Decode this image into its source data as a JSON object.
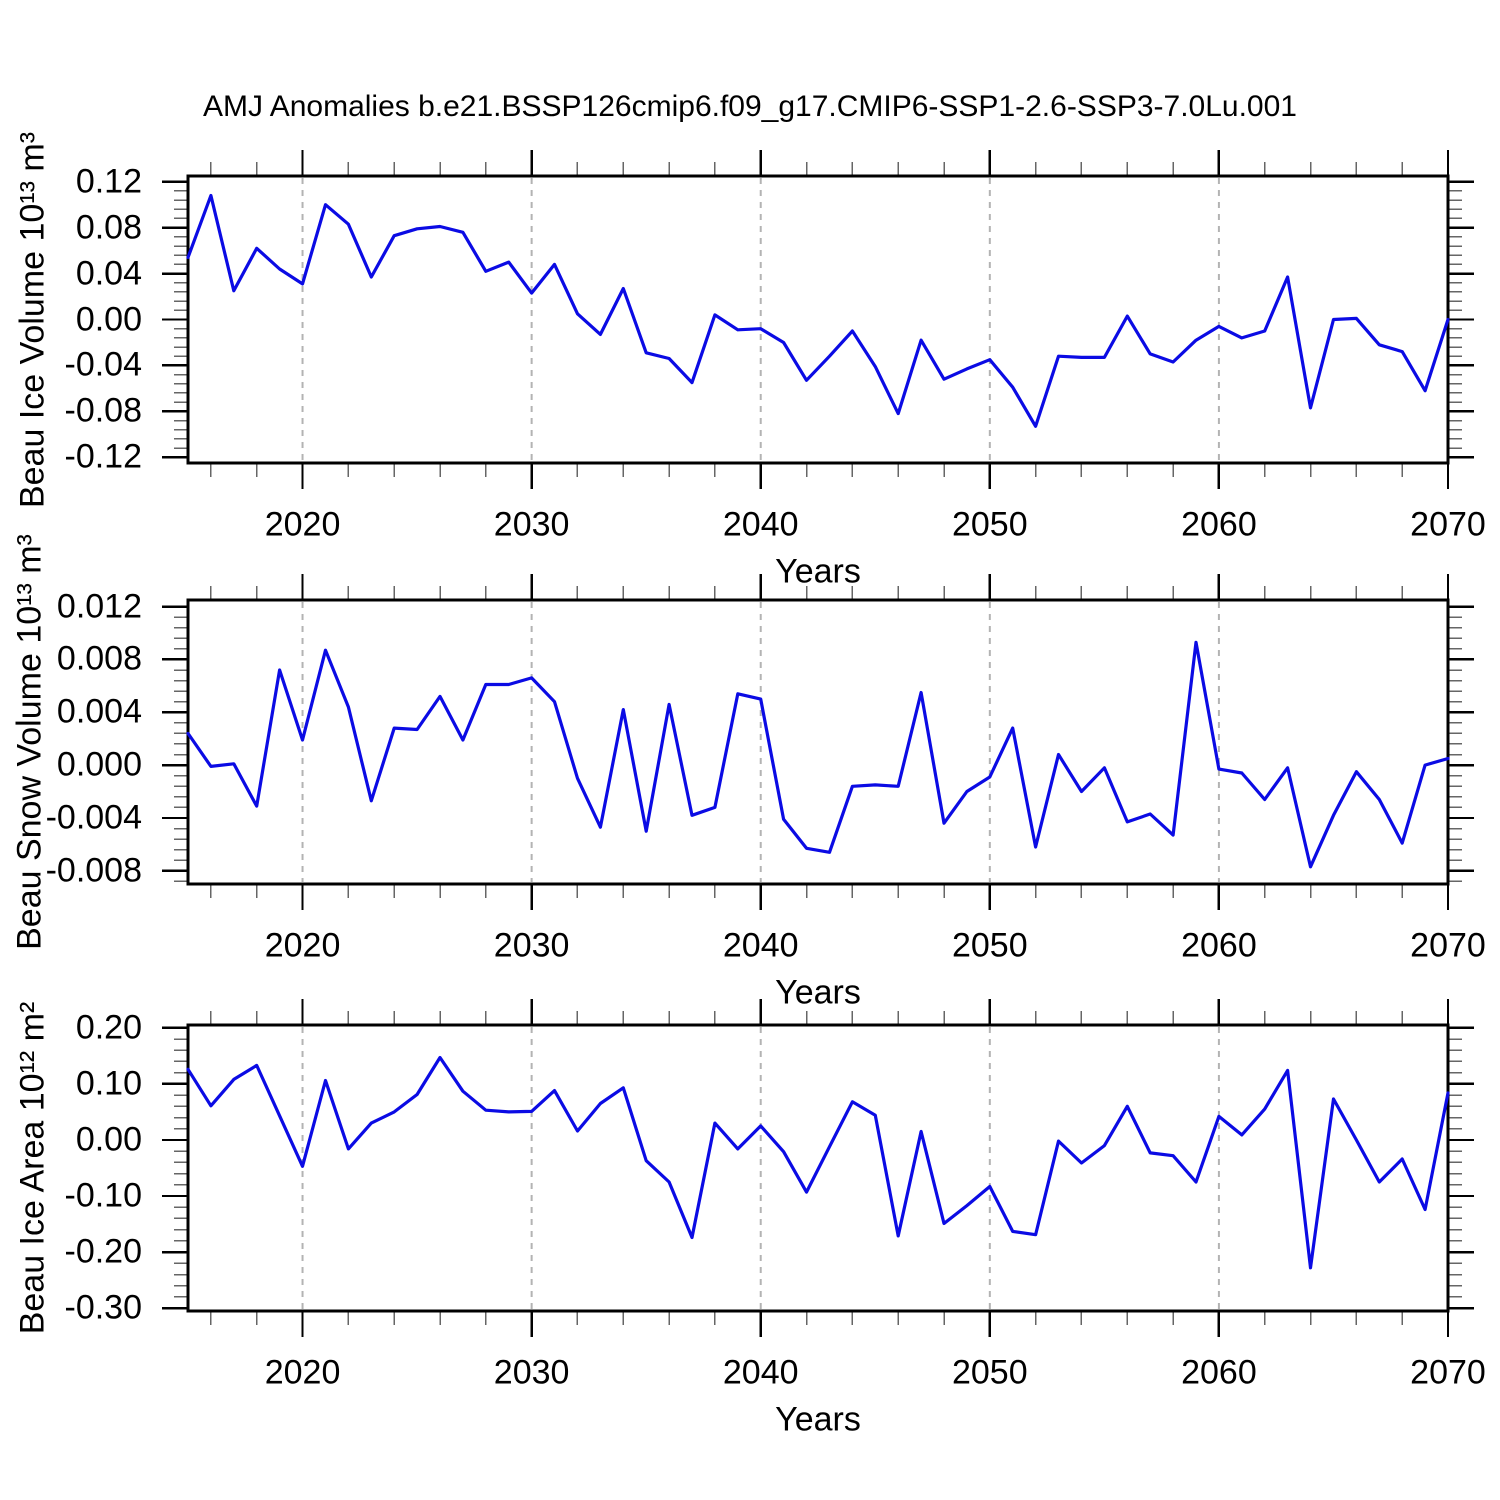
{
  "title": "AMJ Anomalies b.e21.BSSP126cmip6.f09_g17.CMIP6-SSP1-2.6-SSP3-7.0Lu.001",
  "xlabel": "Years",
  "colors": {
    "series": "#0b0be4",
    "grid": "#b3b3b3",
    "axis": "#000000",
    "minor_tick": "#666666",
    "text": "#000000"
  },
  "x_axis": {
    "years": [
      2015,
      2016,
      2017,
      2018,
      2019,
      2020,
      2021,
      2022,
      2023,
      2024,
      2025,
      2026,
      2027,
      2028,
      2029,
      2030,
      2031,
      2032,
      2033,
      2034,
      2035,
      2036,
      2037,
      2038,
      2039,
      2040,
      2041,
      2042,
      2043,
      2044,
      2045,
      2046,
      2047,
      2048,
      2049,
      2050,
      2051,
      2052,
      2053,
      2054,
      2055,
      2056,
      2057,
      2058,
      2059,
      2060,
      2061,
      2062,
      2063,
      2064,
      2065,
      2066,
      2067,
      2068,
      2069,
      2070
    ],
    "major_tick_values": [
      2020,
      2030,
      2040,
      2050,
      2060,
      2070
    ],
    "major_tick_labels": [
      "2020",
      "2030",
      "2040",
      "2050",
      "2060",
      "2070"
    ],
    "minor_step": 2,
    "gridline_years": [
      2020,
      2030,
      2040,
      2050,
      2060
    ]
  },
  "chart_data": [
    {
      "type": "line",
      "id": "beau-ice-volume",
      "ylabel": "Beau Ice Volume 10¹³ m³",
      "ylim": [
        -0.125,
        0.125
      ],
      "y_minor_step": 0.008,
      "yticks": {
        "labels": [
          "0.12",
          "0.08",
          "0.04",
          "0.00",
          "-0.04",
          "-0.08",
          "-0.12"
        ],
        "values": [
          0.12,
          0.08,
          0.04,
          0.0,
          -0.04,
          -0.08,
          -0.12
        ]
      },
      "values": [
        0.054,
        0.108,
        0.025,
        0.062,
        0.044,
        0.031,
        0.1,
        0.083,
        0.037,
        0.073,
        0.079,
        0.081,
        0.076,
        0.042,
        0.05,
        0.023,
        0.048,
        0.005,
        -0.013,
        0.027,
        -0.029,
        -0.034,
        -0.055,
        0.004,
        -0.009,
        -0.008,
        -0.02,
        -0.053,
        -0.032,
        -0.01,
        -0.041,
        -0.082,
        -0.018,
        -0.052,
        -0.043,
        -0.035,
        -0.059,
        -0.093,
        -0.032,
        -0.033,
        -0.033,
        0.003,
        -0.03,
        -0.037,
        -0.018,
        -0.006,
        -0.016,
        -0.01,
        0.037,
        -0.077,
        0.0,
        0.001,
        -0.022,
        -0.028,
        -0.062,
        0.0
      ]
    },
    {
      "type": "line",
      "id": "beau-snow-volume",
      "ylabel": "Beau Snow Volume 10¹³ m³",
      "ylim": [
        -0.009,
        0.0125
      ],
      "y_minor_step": 0.0008,
      "yticks": {
        "labels": [
          "0.012",
          "0.008",
          "0.004",
          "0.000",
          "-0.004",
          "-0.008"
        ],
        "values": [
          0.012,
          0.008,
          0.004,
          0.0,
          -0.004,
          -0.008
        ]
      },
      "values": [
        0.0024,
        -0.0001,
        0.0001,
        -0.0031,
        0.0072,
        0.0019,
        0.0087,
        0.0044,
        -0.0027,
        0.0028,
        0.0027,
        0.0052,
        0.0019,
        0.0061,
        0.0061,
        0.0066,
        0.0048,
        -0.001,
        -0.0047,
        0.0042,
        -0.005,
        0.0046,
        -0.0038,
        -0.0032,
        0.0054,
        0.005,
        -0.0041,
        -0.0063,
        -0.0066,
        -0.0016,
        -0.0015,
        -0.0016,
        0.0055,
        -0.0044,
        -0.002,
        -0.0009,
        0.0028,
        -0.0062,
        0.0008,
        -0.002,
        -0.0002,
        -0.0043,
        -0.0037,
        -0.0053,
        0.0093,
        -0.0003,
        -0.0006,
        -0.0026,
        -0.0002,
        -0.0077,
        -0.0038,
        -0.0005,
        -0.0026,
        -0.0059,
        0.0,
        0.0005
      ]
    },
    {
      "type": "line",
      "id": "beau-ice-area",
      "ylabel": "Beau Ice Area 10¹² m²",
      "ylim": [
        -0.305,
        0.205
      ],
      "y_minor_step": 0.02,
      "yticks": {
        "labels": [
          "0.20",
          "0.10",
          "0.00",
          "-0.10",
          "-0.20",
          "-0.30"
        ],
        "values": [
          0.2,
          0.1,
          0.0,
          -0.1,
          -0.2,
          -0.3
        ]
      },
      "values": [
        0.126,
        0.061,
        0.108,
        0.133,
        0.043,
        -0.047,
        0.106,
        -0.016,
        0.03,
        0.05,
        0.081,
        0.147,
        0.087,
        0.053,
        0.05,
        0.051,
        0.088,
        0.016,
        0.065,
        0.093,
        -0.037,
        -0.075,
        -0.174,
        0.03,
        -0.016,
        0.025,
        -0.021,
        -0.093,
        -0.012,
        0.068,
        0.044,
        -0.171,
        0.015,
        -0.149,
        -0.117,
        -0.083,
        -0.163,
        -0.169,
        -0.002,
        -0.041,
        -0.01,
        0.06,
        -0.023,
        -0.028,
        -0.075,
        0.042,
        0.009,
        0.055,
        0.124,
        -0.228,
        0.073,
        0.0,
        -0.075,
        -0.034,
        -0.124,
        0.084
      ]
    }
  ]
}
